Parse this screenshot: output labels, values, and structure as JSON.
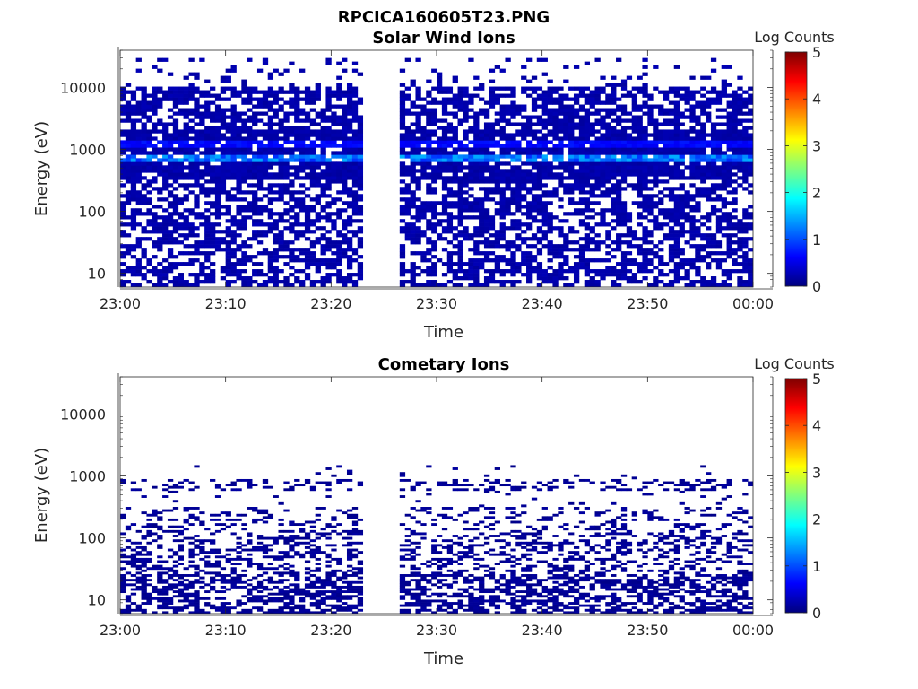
{
  "figure": {
    "title": "RPCICA160605T23.PNG"
  },
  "colormap": {
    "name": "jet",
    "stops": [
      "#00007f",
      "#0000ff",
      "#007fff",
      "#00ffff",
      "#7fff7f",
      "#ffff00",
      "#ff7f00",
      "#ff0000",
      "#7f0000"
    ]
  },
  "chart_data": [
    {
      "type": "heatmap",
      "title": "Solar Wind Ions",
      "xlabel": "Time",
      "ylabel": "Energy (eV)",
      "x_ticks": [
        "23:00",
        "23:10",
        "23:20",
        "23:30",
        "23:40",
        "23:50",
        "00:00"
      ],
      "x_range_minutes": [
        0,
        60
      ],
      "y_scale": "log",
      "y_ticks": [
        "10",
        "100",
        "1000",
        "10000"
      ],
      "y_range": [
        6,
        40000
      ],
      "colorbar": {
        "label": "Log Counts",
        "range": [
          0,
          5
        ],
        "ticks": [
          "0",
          "1",
          "2",
          "3",
          "4",
          "5"
        ]
      },
      "data_gap_minutes": [
        23,
        26.2
      ],
      "peak_band": {
        "energy_eV": 700,
        "log_counts": 1.5
      },
      "typical_log_counts": 0.15,
      "data_energy_range_eV": [
        6,
        30000
      ]
    },
    {
      "type": "heatmap",
      "title": "Cometary Ions",
      "xlabel": "Time",
      "ylabel": "Energy (eV)",
      "x_ticks": [
        "23:00",
        "23:10",
        "23:20",
        "23:30",
        "23:40",
        "23:50",
        "00:00"
      ],
      "x_range_minutes": [
        0,
        60
      ],
      "y_scale": "log",
      "y_ticks": [
        "10",
        "100",
        "1000",
        "10000"
      ],
      "y_range": [
        6,
        40000
      ],
      "colorbar": {
        "label": "Log Counts",
        "range": [
          0,
          5
        ],
        "ticks": [
          "0",
          "1",
          "2",
          "3",
          "4",
          "5"
        ]
      },
      "data_gap_minutes": [
        23,
        26.2
      ],
      "typical_log_counts": 0.05,
      "data_energy_range_eV": [
        6,
        1500
      ]
    }
  ]
}
